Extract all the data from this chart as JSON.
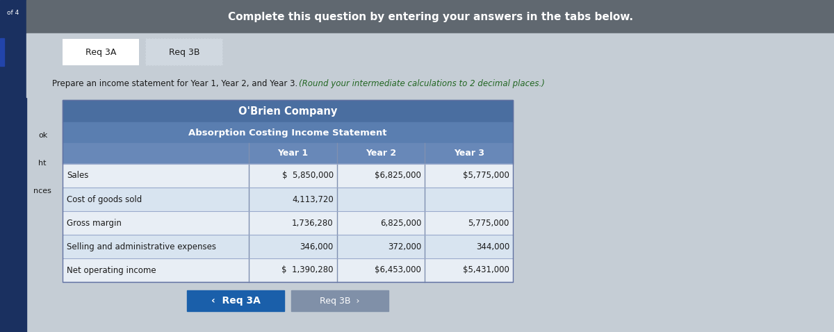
{
  "page_header": "Complete this question by entering your answers in the tabs below.",
  "tab1": "Req 3A",
  "tab2": "Req 3B",
  "instruction_normal": "Prepare an income statement for Year 1, Year 2, and Year 3. ",
  "instruction_italic": "(Round your intermediate calculations to 2 decimal places.)",
  "company_name": "O'Brien Company",
  "statement_title": "Absorption Costing Income Statement",
  "col_headers": [
    "Year 1",
    "Year 2",
    "Year 3"
  ],
  "row_labels": [
    "Sales",
    "Cost of goods sold",
    "Gross margin",
    "Selling and administrative expenses",
    "Net operating income"
  ],
  "year1_values": [
    "$  5,850,000",
    "4,113,720",
    "1,736,280",
    "346,000",
    "$  1,390,280"
  ],
  "year2_values": [
    "$6,825,000",
    "",
    "6,825,000",
    "372,000",
    "$6,453,000"
  ],
  "year3_values": [
    "$5,775,000",
    "",
    "5,775,000",
    "344,000",
    "$5,431,000"
  ],
  "bg_header_bar": "#606870",
  "bg_page": "#c5cdd5",
  "bg_tab_active": "#ffffff",
  "bg_tab_inactive": "#d0d8e0",
  "bg_table_title1": "#4a6ea0",
  "bg_table_title2": "#5a7eb0",
  "bg_col_header": "#6888b8",
  "bg_data_row": "#e8eef5",
  "bg_data_row_alt": "#d8e4f0",
  "text_white": "#ffffff",
  "text_dark": "#1a1a1a",
  "text_dark2": "#222222",
  "btn1_color": "#1a5faa",
  "btn2_color": "#8090a8",
  "left_sidebar_color": "#1a3060",
  "left_bar_color": "#2244aa",
  "of4_text": "of 4",
  "left_labels": [
    "ok",
    "ht",
    "nces"
  ],
  "col_divider_color": "#8090b0",
  "row_divider_color": "#9aaacc"
}
